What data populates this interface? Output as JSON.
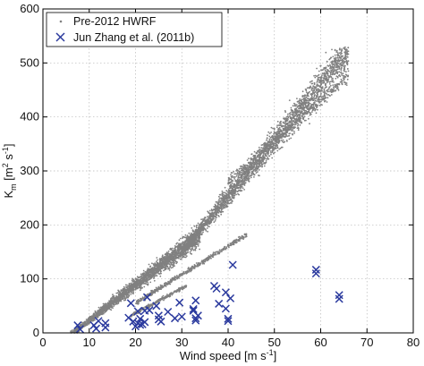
{
  "chart_data": {
    "type": "scatter",
    "xlabel_main": "Wind speed [m s",
    "xlabel_sup": "-1",
    "xlabel_close": "]",
    "ylabel_main": "K",
    "ylabel_sub": "m",
    "ylabel_unit_open": " [m",
    "ylabel_sup1": "2",
    "ylabel_unit_mid": " s",
    "ylabel_sup2": "-1",
    "ylabel_close": "]",
    "xlim": [
      0,
      80
    ],
    "ylim": [
      0,
      600
    ],
    "xticks": [
      0,
      10,
      20,
      30,
      40,
      50,
      60,
      70,
      80
    ],
    "yticks": [
      0,
      100,
      200,
      300,
      400,
      500,
      600
    ],
    "grid": true,
    "legend_position": "top-left",
    "colors": {
      "hwrf": "#808080",
      "zhang": "#2b3a9e"
    },
    "series": [
      {
        "name": "Pre-2012 HWRF",
        "marker": "dot",
        "x_range": [
          6,
          66
        ],
        "y_range": [
          0,
          525
        ]
      },
      {
        "name": "Jun Zhang et al. (2011b)",
        "marker": "x",
        "points": [
          [
            7.5,
            14
          ],
          [
            8,
            7
          ],
          [
            11,
            14
          ],
          [
            11.5,
            8
          ],
          [
            12,
            22
          ],
          [
            13.5,
            18
          ],
          [
            13.5,
            10
          ],
          [
            18.5,
            28
          ],
          [
            19,
            55
          ],
          [
            19.5,
            21
          ],
          [
            20,
            12
          ],
          [
            20.5,
            40
          ],
          [
            20.5,
            18
          ],
          [
            21,
            15
          ],
          [
            21,
            26
          ],
          [
            21.5,
            16
          ],
          [
            22,
            20
          ],
          [
            22.5,
            66
          ],
          [
            22,
            41
          ],
          [
            23,
            42
          ],
          [
            24.5,
            50
          ],
          [
            25,
            32
          ],
          [
            25,
            25
          ],
          [
            25.5,
            21
          ],
          [
            27,
            39
          ],
          [
            28.5,
            27
          ],
          [
            29.5,
            56
          ],
          [
            30,
            30
          ],
          [
            32.5,
            41
          ],
          [
            32.5,
            44
          ],
          [
            33,
            27
          ],
          [
            33,
            23
          ],
          [
            33.5,
            32
          ],
          [
            33,
            60
          ],
          [
            37,
            87
          ],
          [
            37.5,
            82
          ],
          [
            38,
            54
          ],
          [
            39.5,
            75
          ],
          [
            39.5,
            45
          ],
          [
            40,
            26
          ],
          [
            40,
            22
          ],
          [
            40.5,
            64
          ],
          [
            41,
            126
          ],
          [
            59,
            117
          ],
          [
            59,
            110
          ],
          [
            64,
            70
          ],
          [
            64,
            63
          ]
        ]
      }
    ]
  }
}
